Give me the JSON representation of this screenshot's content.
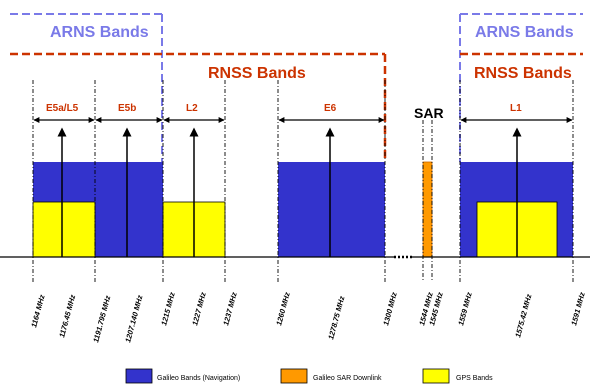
{
  "arns_label": "ARNS Bands",
  "rnss_label": "RNSS Bands",
  "sar_label": "SAR",
  "band_labels": [
    "E5a/L5",
    "E5b",
    "L2",
    "E6",
    "L1"
  ],
  "frequencies": [
    "1164 MHz",
    "1176.45 MHz",
    "1191.795 MHz",
    "1207.140 MHz",
    "1215 MHz",
    "1227 MHz",
    "1237 MHz",
    "1260 MHz",
    "1278.75 MHz",
    "1300 MHz",
    "1544 MHz",
    "1545 MHz",
    "1559 MHz",
    "1575.42 MHz",
    "1591 MHz"
  ],
  "legend": [
    {
      "label": "Galileo Bands (Navigation)",
      "color": "#3333cc"
    },
    {
      "label": "Galileo SAR Downlink",
      "color": "#ff9900"
    },
    {
      "label": "GPS Bands",
      "color": "#ffff00"
    }
  ],
  "colors": {
    "galileo": "#3333cc",
    "sar": "#ff9900",
    "gps": "#ffff00",
    "arns": "#7a7ae8",
    "rnss": "#cc3300"
  }
}
